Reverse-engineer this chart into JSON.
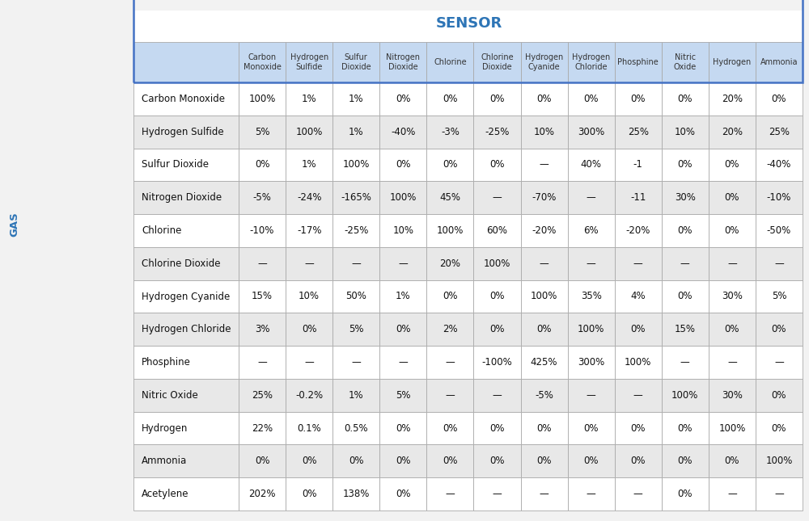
{
  "title": "SENSOR",
  "title_color": "#2E75B6",
  "row_label": "GAS",
  "col_headers": [
    "Carbon\nMonoxide",
    "Hydrogen\nSulfide",
    "Sulfur\nDioxide",
    "Nitrogen\nDioxide",
    "Chlorine",
    "Chlorine\nDioxide",
    "Hydrogen\nCyanide",
    "Hydrogen\nChloride",
    "Phosphine",
    "Nitric\nOxide",
    "Hydrogen",
    "Ammonia"
  ],
  "row_headers": [
    "Carbon Monoxide",
    "Hydrogen Sulfide",
    "Sulfur Dioxide",
    "Nitrogen Dioxide",
    "Chlorine",
    "Chlorine Dioxide",
    "Hydrogen Cyanide",
    "Hydrogen Chloride",
    "Phosphine",
    "Nitric Oxide",
    "Hydrogen",
    "Ammonia",
    "Acetylene"
  ],
  "table_data": [
    [
      "100%",
      "1%",
      "1%",
      "0%",
      "0%",
      "0%",
      "0%",
      "0%",
      "0%",
      "0%",
      "20%",
      "0%"
    ],
    [
      "5%",
      "100%",
      "1%",
      "-40%",
      "-3%",
      "-25%",
      "10%",
      "300%",
      "25%",
      "10%",
      "20%",
      "25%"
    ],
    [
      "0%",
      "1%",
      "100%",
      "0%",
      "0%",
      "0%",
      "—",
      "40%",
      "-1",
      "0%",
      "0%",
      "-40%"
    ],
    [
      "-5%",
      "-24%",
      "-165%",
      "100%",
      "45%",
      "—",
      "-70%",
      "—",
      "-11",
      "30%",
      "0%",
      "-10%"
    ],
    [
      "-10%",
      "-17%",
      "-25%",
      "10%",
      "100%",
      "60%",
      "-20%",
      "6%",
      "-20%",
      "0%",
      "0%",
      "-50%"
    ],
    [
      "—",
      "—",
      "—",
      "—",
      "20%",
      "100%",
      "—",
      "—",
      "—",
      "—",
      "—",
      "—"
    ],
    [
      "15%",
      "10%",
      "50%",
      "1%",
      "0%",
      "0%",
      "100%",
      "35%",
      "4%",
      "0%",
      "30%",
      "5%"
    ],
    [
      "3%",
      "0%",
      "5%",
      "0%",
      "2%",
      "0%",
      "0%",
      "100%",
      "0%",
      "15%",
      "0%",
      "0%"
    ],
    [
      "—",
      "—",
      "—",
      "—",
      "—",
      "-100%",
      "425%",
      "300%",
      "100%",
      "—",
      "—",
      "—"
    ],
    [
      "25%",
      "-0.2%",
      "1%",
      "5%",
      "—",
      "—",
      "-5%",
      "—",
      "—",
      "100%",
      "30%",
      "0%"
    ],
    [
      "22%",
      "0.1%",
      "0.5%",
      "0%",
      "0%",
      "0%",
      "0%",
      "0%",
      "0%",
      "0%",
      "100%",
      "0%"
    ],
    [
      "0%",
      "0%",
      "0%",
      "0%",
      "0%",
      "0%",
      "0%",
      "0%",
      "0%",
      "0%",
      "0%",
      "100%"
    ],
    [
      "202%",
      "0%",
      "138%",
      "0%",
      "—",
      "—",
      "—",
      "—",
      "—",
      "0%",
      "—",
      "—"
    ]
  ],
  "col_header_bg": "#C5D9F1",
  "col_header_border": "#4472C4",
  "row_even_bg": "#E8E8E8",
  "row_odd_bg": "#FFFFFF",
  "border_color": "#AAAAAA",
  "outer_border_color": "#555555",
  "text_color": "#111111",
  "header_text_color": "#333333",
  "background": "#F2F2F2",
  "gas_label_color": "#2E75B6",
  "fig_width": 10.0,
  "fig_height": 6.45,
  "title_fontsize": 13,
  "header_fontsize": 7.0,
  "cell_fontsize": 8.5,
  "row_label_fontsize": 9.5
}
